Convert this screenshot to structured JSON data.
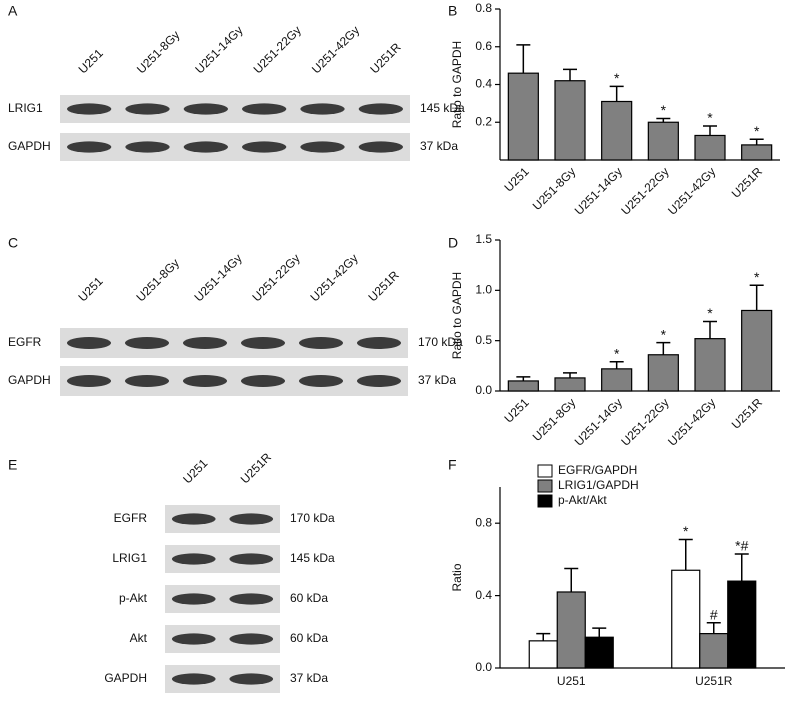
{
  "blots": [
    {
      "panel": "A",
      "columns": [
        "U251",
        "U251-8Gy",
        "U251-14Gy",
        "U251-22Gy",
        "U251-42Gy",
        "U251R"
      ],
      "rows": [
        {
          "label": "LRIG1",
          "size": "145 kDa"
        },
        {
          "label": "GAPDH",
          "size": "37 kDa"
        }
      ]
    },
    {
      "panel": "C",
      "columns": [
        "U251",
        "U251-8Gy",
        "U251-14Gy",
        "U251-22Gy",
        "U251-42Gy",
        "U251R"
      ],
      "rows": [
        {
          "label": "EGFR",
          "size": "170 kDa"
        },
        {
          "label": "GAPDH",
          "size": "37 kDa"
        }
      ]
    },
    {
      "panel": "E",
      "columns": [
        "U251",
        "U251R"
      ],
      "rows": [
        {
          "label": "EGFR",
          "size": "170 kDa"
        },
        {
          "label": "LRIG1",
          "size": "145 kDa"
        },
        {
          "label": "p-Akt",
          "size": "60 kDa"
        },
        {
          "label": "Akt",
          "size": "60 kDa"
        },
        {
          "label": "GAPDH",
          "size": "37 kDa"
        }
      ]
    }
  ],
  "chart_data": [
    {
      "type": "bar",
      "panel": "B",
      "y_label": "Ratio to GAPDH",
      "categories": [
        "U251",
        "U251-8Gy",
        "U251-14Gy",
        "U251-22Gy",
        "U251-42Gy",
        "U251R"
      ],
      "series": [
        {
          "color": "#808080",
          "values": [
            0.46,
            0.42,
            0.31,
            0.2,
            0.13,
            0.08
          ],
          "errors": [
            0.15,
            0.06,
            0.08,
            0.02,
            0.05,
            0.03
          ],
          "annotations": [
            null,
            null,
            "*",
            "*",
            "*",
            "*"
          ]
        }
      ],
      "ylim": [
        0,
        0.8
      ],
      "yticks": [
        0.2,
        0.4,
        0.6,
        0.8
      ]
    },
    {
      "type": "bar",
      "panel": "D",
      "y_label": "Ratio to GAPDH",
      "categories": [
        "U251",
        "U251-8Gy",
        "U251-14Gy",
        "U251-22Gy",
        "U251-42Gy",
        "U251R"
      ],
      "series": [
        {
          "color": "#808080",
          "values": [
            0.1,
            0.13,
            0.22,
            0.36,
            0.52,
            0.8
          ],
          "errors": [
            0.04,
            0.05,
            0.07,
            0.12,
            0.17,
            0.25
          ],
          "annotations": [
            null,
            null,
            "*",
            "*",
            "*",
            "*"
          ]
        }
      ],
      "ylim": [
        0,
        1.5
      ],
      "yticks": [
        {
          "value": 0,
          "label": "0.0"
        },
        0.5,
        {
          "value": 1,
          "label": "1.0"
        },
        1.5
      ]
    },
    {
      "type": "bar",
      "panel": "F",
      "y_label": "Ratio",
      "legend": "upper left",
      "categories": [
        "U251",
        "U251R"
      ],
      "series": [
        {
          "name": "EGFR/GAPDH",
          "color": "#ffffff",
          "values": [
            0.15,
            0.54
          ],
          "errors": [
            0.04,
            0.17
          ],
          "annotations": [
            null,
            "*"
          ]
        },
        {
          "name": "LRIG1/GAPDH",
          "color": "#808080",
          "values": [
            0.42,
            0.19
          ],
          "errors": [
            0.13,
            0.06
          ],
          "annotations": [
            null,
            "#"
          ]
        },
        {
          "name": "p-Akt/Akt",
          "color": "#000000",
          "values": [
            0.17,
            0.48
          ],
          "errors": [
            0.05,
            0.15
          ],
          "annotations": [
            null,
            "*#"
          ]
        }
      ],
      "ylim": [
        0,
        1
      ],
      "yticks": [
        {
          "value": 0,
          "label": "0.0"
        },
        0.4,
        0.8
      ]
    }
  ]
}
